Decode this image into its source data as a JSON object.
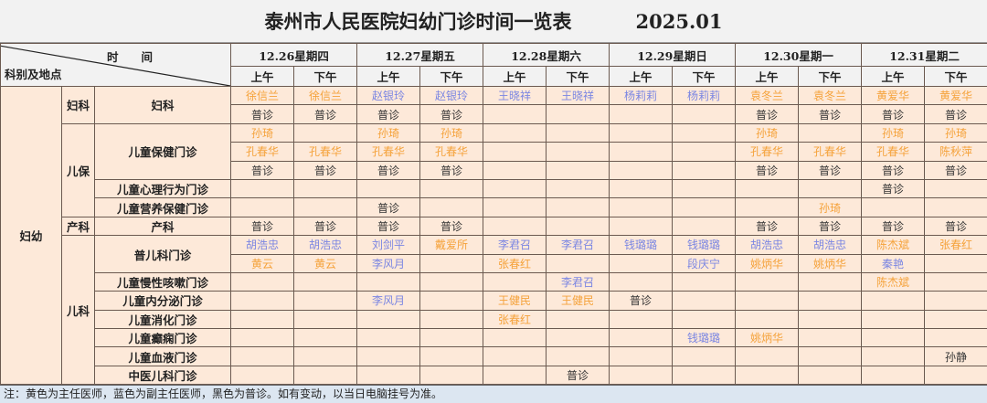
{
  "title": "泰州市人民医院妇幼门诊时间一览表",
  "period": "2025.01",
  "header": {
    "time_label": "时　　间",
    "dept_label": "科别及地点",
    "days": [
      "12.26星期四",
      "12.27星期五",
      "12.28星期六",
      "12.29星期日",
      "12.30星期一",
      "12.31星期二"
    ],
    "am": "上午",
    "pm": "下午"
  },
  "colors": {
    "chief": "#f5a23a",
    "assoc": "#7b86e2",
    "general": "#333333",
    "cell_bg": "#fde9d9",
    "header_bg": "#f2f2f2",
    "footer_bg": "#dce6f1"
  },
  "division": "妇幼",
  "groups": [
    {
      "name": "妇科",
      "clinics": [
        {
          "name": "妇科",
          "rows": [
            [
              [
                "徐信兰",
                "chief"
              ],
              [
                "徐信兰",
                "chief"
              ],
              [
                "赵银玲",
                "assoc"
              ],
              [
                "赵银玲",
                "assoc"
              ],
              [
                "王晓祥",
                "assoc"
              ],
              [
                "王晓祥",
                "assoc"
              ],
              [
                "杨莉莉",
                "assoc"
              ],
              [
                "杨莉莉",
                "assoc"
              ],
              [
                "袁冬兰",
                "chief"
              ],
              [
                "袁冬兰",
                "chief"
              ],
              [
                "黄爱华",
                "chief"
              ],
              [
                "黄爱华",
                "chief"
              ]
            ],
            [
              [
                "普诊",
                "general"
              ],
              [
                "普诊",
                "general"
              ],
              [
                "普诊",
                "general"
              ],
              [
                "普诊",
                "general"
              ],
              "",
              "",
              "",
              "",
              [
                "普诊",
                "general"
              ],
              [
                "普诊",
                "general"
              ],
              [
                "普诊",
                "general"
              ],
              [
                "普诊",
                "general"
              ]
            ]
          ]
        }
      ]
    },
    {
      "name": "儿保",
      "clinics": [
        {
          "name": "儿童保健门诊",
          "rows": [
            [
              [
                "孙琦",
                "chief"
              ],
              "",
              [
                "孙琦",
                "chief"
              ],
              [
                "孙琦",
                "chief"
              ],
              "",
              "",
              "",
              "",
              [
                "孙琦",
                "chief"
              ],
              "",
              [
                "孙琦",
                "chief"
              ],
              [
                "孙琦",
                "chief"
              ]
            ],
            [
              [
                "孔春华",
                "chief"
              ],
              [
                "孔春华",
                "chief"
              ],
              [
                "孔春华",
                "chief"
              ],
              [
                "孔春华",
                "chief"
              ],
              "",
              "",
              "",
              "",
              [
                "孔春华",
                "chief"
              ],
              [
                "孔春华",
                "chief"
              ],
              [
                "孔春华",
                "chief"
              ],
              [
                "陈秋萍",
                "chief"
              ]
            ],
            [
              [
                "普诊",
                "general"
              ],
              [
                "普诊",
                "general"
              ],
              [
                "普诊",
                "general"
              ],
              [
                "普诊",
                "general"
              ],
              "",
              "",
              "",
              "",
              [
                "普诊",
                "general"
              ],
              [
                "普诊",
                "general"
              ],
              [
                "普诊",
                "general"
              ],
              [
                "普诊",
                "general"
              ]
            ]
          ]
        },
        {
          "name": "儿童心理行为门诊",
          "rows": [
            [
              "",
              "",
              "",
              "",
              "",
              "",
              "",
              "",
              "",
              "",
              [
                "普诊",
                "general"
              ],
              ""
            ]
          ]
        },
        {
          "name": "儿童营养保健门诊",
          "rows": [
            [
              "",
              "",
              [
                "普诊",
                "general"
              ],
              "",
              "",
              "",
              "",
              "",
              "",
              [
                "孙琦",
                "chief"
              ],
              "",
              ""
            ]
          ]
        }
      ]
    },
    {
      "name": "产科",
      "clinics": [
        {
          "name": "产科",
          "rows": [
            [
              [
                "普诊",
                "general"
              ],
              [
                "普诊",
                "general"
              ],
              [
                "普诊",
                "general"
              ],
              [
                "普诊",
                "general"
              ],
              "",
              "",
              "",
              "",
              [
                "普诊",
                "general"
              ],
              [
                "普诊",
                "general"
              ],
              [
                "普诊",
                "general"
              ],
              [
                "普诊",
                "general"
              ]
            ]
          ]
        }
      ]
    },
    {
      "name": "儿科",
      "clinics": [
        {
          "name": "普儿科门诊",
          "rows": [
            [
              [
                "胡浩忠",
                "assoc"
              ],
              [
                "胡浩忠",
                "assoc"
              ],
              [
                "刘剑平",
                "assoc"
              ],
              [
                "戴爱所",
                "chief"
              ],
              [
                "李君召",
                "assoc"
              ],
              [
                "李君召",
                "assoc"
              ],
              [
                "钱璐璐",
                "assoc"
              ],
              [
                "钱璐璐",
                "assoc"
              ],
              [
                "胡浩忠",
                "assoc"
              ],
              [
                "胡浩忠",
                "assoc"
              ],
              [
                "陈杰斌",
                "chief"
              ],
              [
                "张春红",
                "chief"
              ]
            ],
            [
              [
                "黄云",
                "chief"
              ],
              [
                "黄云",
                "chief"
              ],
              [
                "李风月",
                "assoc"
              ],
              "",
              [
                "张春红",
                "chief"
              ],
              "",
              "",
              [
                "段庆宁",
                "assoc"
              ],
              [
                "姚炳华",
                "chief"
              ],
              [
                "姚炳华",
                "chief"
              ],
              [
                "秦艳",
                "assoc"
              ],
              ""
            ]
          ]
        },
        {
          "name": "儿童慢性咳嗽门诊",
          "rows": [
            [
              "",
              "",
              "",
              "",
              "",
              [
                "李君召",
                "assoc"
              ],
              "",
              "",
              "",
              "",
              [
                "陈杰斌",
                "chief"
              ],
              ""
            ]
          ]
        },
        {
          "name": "儿童内分泌门诊",
          "rows": [
            [
              "",
              "",
              [
                "李风月",
                "assoc"
              ],
              "",
              [
                "王健民",
                "chief"
              ],
              [
                "王健民",
                "chief"
              ],
              [
                "普诊",
                "general"
              ],
              "",
              "",
              "",
              "",
              ""
            ]
          ]
        },
        {
          "name": "儿童消化门诊",
          "rows": [
            [
              "",
              "",
              "",
              "",
              [
                "张春红",
                "chief"
              ],
              "",
              "",
              "",
              "",
              "",
              "",
              ""
            ]
          ]
        },
        {
          "name": "儿童癫痫门诊",
          "rows": [
            [
              "",
              "",
              "",
              "",
              "",
              "",
              "",
              [
                "钱璐璐",
                "assoc"
              ],
              [
                "姚炳华",
                "chief"
              ],
              "",
              "",
              ""
            ]
          ]
        },
        {
          "name": "儿童血液门诊",
          "rows": [
            [
              "",
              "",
              "",
              "",
              "",
              "",
              "",
              "",
              "",
              "",
              "",
              [
                "孙静",
                "general"
              ]
            ]
          ]
        },
        {
          "name": "中医儿科门诊",
          "rows": [
            [
              "",
              "",
              "",
              "",
              "",
              [
                "普诊",
                "general"
              ],
              "",
              "",
              "",
              "",
              "",
              ""
            ]
          ]
        }
      ]
    }
  ],
  "footer_note": "注：黄色为主任医师，蓝色为副主任医师，黑色为普诊。如有变动，以当日电脑挂号为准。"
}
